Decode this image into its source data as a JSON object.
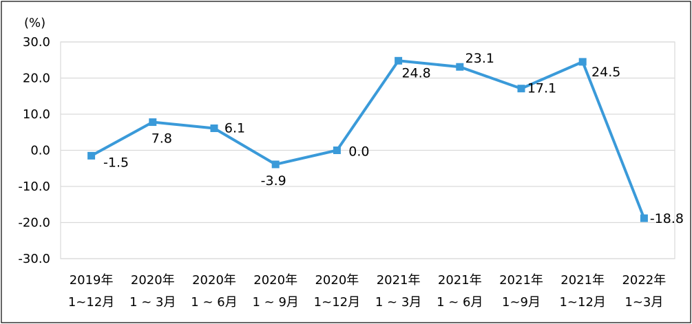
{
  "chart_data": {
    "type": "line",
    "ylabel": "(%)",
    "ylim": [
      -30,
      30
    ],
    "yticks": [
      "30.0",
      "20.0",
      "10.0",
      "0.0",
      "-10.0",
      "-20.0",
      "-30.0"
    ],
    "categories": [
      [
        "2019年",
        "1~12月"
      ],
      [
        "2020年",
        "1 ~ 3月"
      ],
      [
        "2020年",
        "1 ~ 6月"
      ],
      [
        "2020年",
        "1 ~ 9月"
      ],
      [
        "2020年",
        "1~12月"
      ],
      [
        "2021年",
        "1 ~ 3月"
      ],
      [
        "2021年",
        "1 ~ 6月"
      ],
      [
        "2021年",
        "1~9月"
      ],
      [
        "2021年",
        "1~12月"
      ],
      [
        "2022年",
        "1~3月"
      ]
    ],
    "series": [
      {
        "values": [
          -1.5,
          7.8,
          6.1,
          -3.9,
          0.0,
          24.8,
          23.1,
          17.1,
          24.5,
          -18.8
        ],
        "labels": [
          "-1.5",
          "7.8",
          "6.1",
          "-3.9",
          "0.0",
          "24.8",
          "23.1",
          "17.1",
          "24.5",
          "-18.8"
        ],
        "color": "#3A9AD9"
      }
    ],
    "colors": {
      "line": "#3A9AD9",
      "grid": "#D9D9D9",
      "frame": "#000000"
    },
    "grid": true,
    "legend": "none"
  }
}
